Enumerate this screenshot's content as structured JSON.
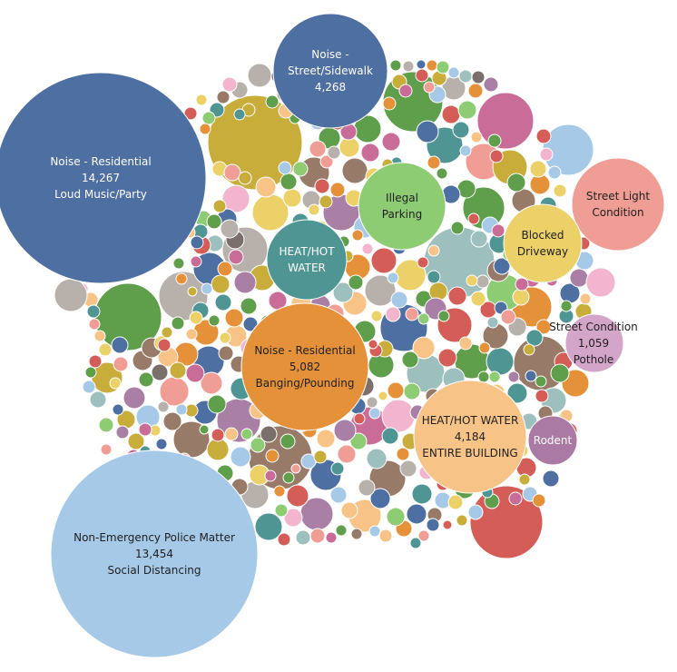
{
  "chart_data": {
    "type": "packed-bubble",
    "title": "",
    "labeled_bubbles": [
      {
        "lines": [
          "Noise - Residential",
          "14,267",
          "Loud Music/Party"
        ],
        "color": "#4e6fa1",
        "text": "light"
      },
      {
        "lines": [
          "Non-Emergency Police Matter",
          "13,454",
          "Social Distancing"
        ],
        "color": "#a6c9e8",
        "text": "dark"
      },
      {
        "lines": [
          "Noise - Residential",
          "5,082",
          "Banging/Pounding"
        ],
        "color": "#e5913a",
        "text": "dark"
      },
      {
        "lines": [
          "Noise -",
          "Street/Sidewalk",
          "4,268"
        ],
        "color": "#4e6fa1",
        "text": "light"
      },
      {
        "lines": [
          "HEAT/HOT WATER",
          "4,184",
          "ENTIRE BUILDING"
        ],
        "color": "#f8c386",
        "text": "dark"
      },
      {
        "lines": [
          "Illegal",
          "Parking"
        ],
        "color": "#8ecc74",
        "text": "dark"
      },
      {
        "lines": [
          "HEAT/HOT",
          "WATER"
        ],
        "color": "#4e9594",
        "text": "light"
      },
      {
        "lines": [
          "Street Light",
          "Condition"
        ],
        "color": "#f09d95",
        "text": "dark"
      },
      {
        "lines": [
          "Blocked",
          "Driveway"
        ],
        "color": "#ecd068",
        "text": "dark"
      },
      {
        "lines": [
          "Street Condition",
          "1,059",
          "Pothole"
        ],
        "color": "#d3a5c8",
        "text": "dark"
      },
      {
        "lines": [
          "Rodent"
        ],
        "color": "#ab7aa4",
        "text": "light"
      }
    ],
    "palette": [
      "#4e6fa1",
      "#e5913a",
      "#d55d57",
      "#4e9594",
      "#5f9e4a",
      "#ecd068",
      "#a97fa6",
      "#f09d95",
      "#987a68",
      "#b8b0ab",
      "#a6c9e8",
      "#f8c386",
      "#8ecc74",
      "#c8ad3b",
      "#c96d98",
      "#f2b5cd",
      "#7b6f6b",
      "#9dbfbe",
      "#d1a878"
    ]
  }
}
